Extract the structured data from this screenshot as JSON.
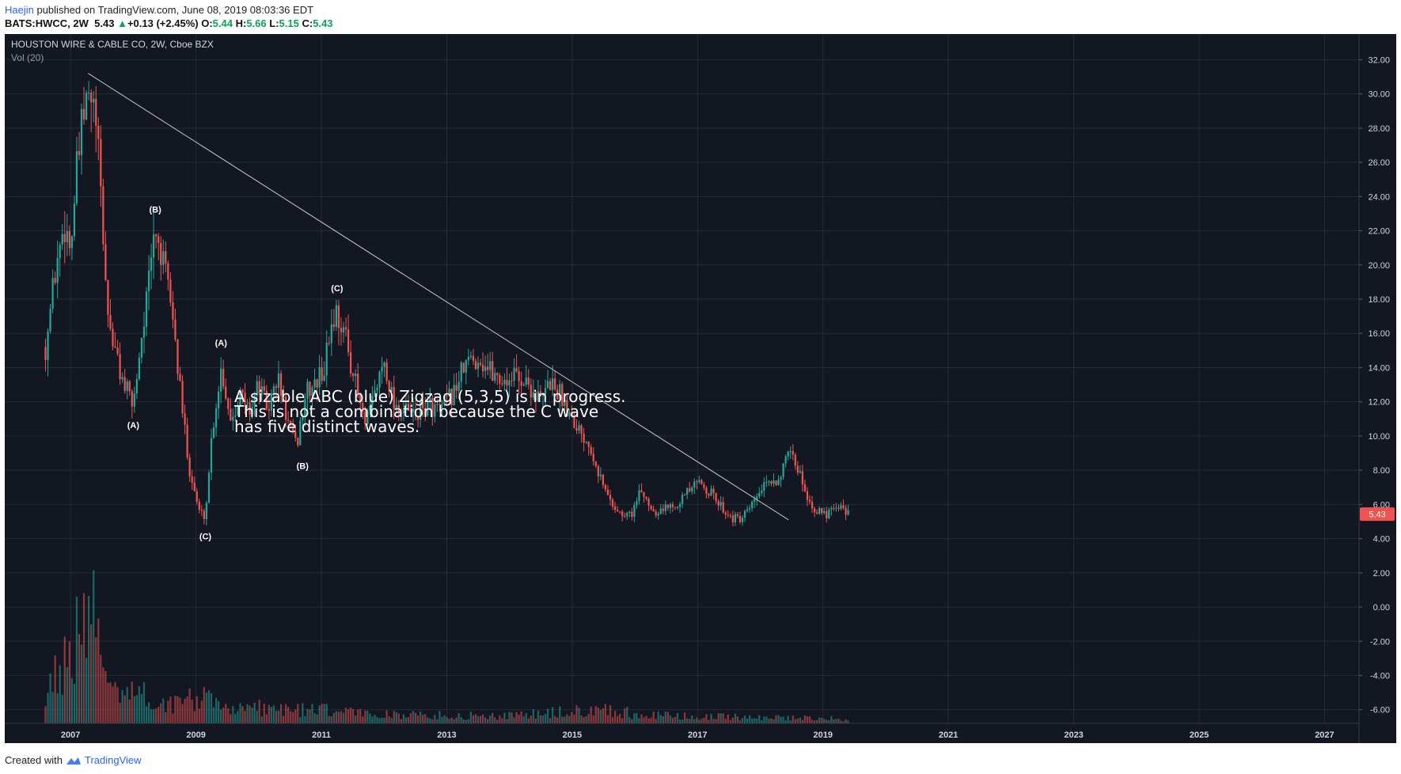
{
  "header": {
    "author": "Haejin",
    "published": " published on TradingView.com, June 08, 2019 08:03:36 EDT",
    "symbol": "BATS:HWCC, 2W",
    "last": "5.43",
    "change": "+0.13 (+2.45%)",
    "o_label": "O:",
    "o": "5.44",
    "h_label": "H:",
    "h": "5.66",
    "l_label": "L:",
    "l": "5.15",
    "c_label": "C:",
    "c": "5.43"
  },
  "footer": {
    "created": "Created with",
    "brand": "TradingView"
  },
  "chart_data": {
    "type": "candlestick",
    "title": "HOUSTON WIRE & CABLE CO, 2W, Cboe BZX",
    "indicator": "Vol (20)",
    "last_price": "5.43",
    "y_ticks": [
      32,
      30,
      28,
      26,
      24,
      22,
      20,
      18,
      16,
      14,
      12,
      10,
      8,
      6,
      4,
      2,
      0,
      -2,
      -4,
      -6
    ],
    "ylim": [
      -6.8,
      33.5
    ],
    "x_ticks": [
      "2007",
      "2009",
      "2011",
      "2013",
      "2015",
      "2017",
      "2019",
      "2021",
      "2023",
      "2025",
      "2027"
    ],
    "xlim": [
      2005.95,
      2027.55
    ],
    "annotation": "A sizable ABC (blue) Zigzag (5,3,5) is in progress.\nThis is not a combination because the C wave\nhas five distinct waves.",
    "wave_labels": [
      {
        "text": "(A)",
        "date": 2008.0,
        "price": 11.3,
        "pos": "below"
      },
      {
        "text": "(B)",
        "date": 2008.35,
        "price": 22.6,
        "pos": "above"
      },
      {
        "text": "(C)",
        "date": 2009.15,
        "price": 4.8,
        "pos": "below"
      },
      {
        "text": "(A)",
        "date": 2009.4,
        "price": 14.8,
        "pos": "above"
      },
      {
        "text": "(B)",
        "date": 2010.7,
        "price": 8.9,
        "pos": "below"
      },
      {
        "text": "(C)",
        "date": 2011.25,
        "price": 18.0,
        "pos": "above"
      }
    ],
    "trendline": {
      "from": [
        2007.28,
        31.2
      ],
      "to": [
        2018.45,
        5.1
      ]
    },
    "price_path": [
      [
        2006.6,
        15.2
      ],
      [
        2006.75,
        19.5
      ],
      [
        2006.9,
        22.5
      ],
      [
        2007.0,
        21.0
      ],
      [
        2007.1,
        25.5
      ],
      [
        2007.2,
        28.5
      ],
      [
        2007.3,
        29.8
      ],
      [
        2007.4,
        28.5
      ],
      [
        2007.5,
        23.0
      ],
      [
        2007.58,
        17.5
      ],
      [
        2007.7,
        15.0
      ],
      [
        2007.85,
        13.0
      ],
      [
        2008.0,
        11.8
      ],
      [
        2008.1,
        15.0
      ],
      [
        2008.25,
        19.0
      ],
      [
        2008.35,
        22.2
      ],
      [
        2008.5,
        19.5
      ],
      [
        2008.6,
        18.0
      ],
      [
        2008.75,
        12.5
      ],
      [
        2008.9,
        8.0
      ],
      [
        2009.05,
        5.6
      ],
      [
        2009.15,
        5.3
      ],
      [
        2009.25,
        10.0
      ],
      [
        2009.4,
        14.0
      ],
      [
        2009.55,
        11.0
      ],
      [
        2009.7,
        12.5
      ],
      [
        2009.85,
        11.5
      ],
      [
        2010.0,
        13.0
      ],
      [
        2010.15,
        11.5
      ],
      [
        2010.3,
        13.5
      ],
      [
        2010.45,
        11.0
      ],
      [
        2010.6,
        9.3
      ],
      [
        2010.75,
        12.5
      ],
      [
        2010.9,
        13.0
      ],
      [
        2011.05,
        14.0
      ],
      [
        2011.15,
        16.5
      ],
      [
        2011.25,
        17.3
      ],
      [
        2011.4,
        15.5
      ],
      [
        2011.55,
        13.0
      ],
      [
        2011.7,
        10.5
      ],
      [
        2011.85,
        12.5
      ],
      [
        2012.0,
        14.5
      ],
      [
        2012.15,
        12.0
      ],
      [
        2012.3,
        11.5
      ],
      [
        2012.5,
        11.2
      ],
      [
        2012.7,
        11.8
      ],
      [
        2012.9,
        11.5
      ],
      [
        2013.1,
        12.5
      ],
      [
        2013.3,
        14.2
      ],
      [
        2013.5,
        14.6
      ],
      [
        2013.7,
        13.8
      ],
      [
        2013.9,
        13.2
      ],
      [
        2014.1,
        13.6
      ],
      [
        2014.3,
        13.0
      ],
      [
        2014.5,
        12.0
      ],
      [
        2014.65,
        13.2
      ],
      [
        2014.8,
        12.5
      ],
      [
        2014.95,
        11.5
      ],
      [
        2015.1,
        10.5
      ],
      [
        2015.3,
        9.4
      ],
      [
        2015.5,
        7.0
      ],
      [
        2015.65,
        6.0
      ],
      [
        2015.8,
        5.3
      ],
      [
        2015.95,
        5.5
      ],
      [
        2016.1,
        6.8
      ],
      [
        2016.3,
        5.6
      ],
      [
        2016.5,
        5.8
      ],
      [
        2016.7,
        6.2
      ],
      [
        2016.9,
        6.9
      ],
      [
        2017.05,
        7.3
      ],
      [
        2017.2,
        6.7
      ],
      [
        2017.35,
        6.0
      ],
      [
        2017.55,
        5.2
      ],
      [
        2017.7,
        5.1
      ],
      [
        2017.85,
        5.8
      ],
      [
        2018.0,
        6.8
      ],
      [
        2018.15,
        7.2
      ],
      [
        2018.3,
        7.6
      ],
      [
        2018.45,
        8.8
      ],
      [
        2018.55,
        8.5
      ],
      [
        2018.65,
        7.6
      ],
      [
        2018.8,
        6.0
      ],
      [
        2018.95,
        5.5
      ],
      [
        2019.05,
        5.4
      ],
      [
        2019.15,
        6.0
      ],
      [
        2019.3,
        5.9
      ],
      [
        2019.42,
        5.43
      ]
    ],
    "volume_path": [
      [
        2006.6,
        0.18
      ],
      [
        2006.8,
        0.45
      ],
      [
        2007.0,
        0.55
      ],
      [
        2007.2,
        0.7
      ],
      [
        2007.3,
        1.0
      ],
      [
        2007.45,
        0.55
      ],
      [
        2007.6,
        0.35
      ],
      [
        2007.8,
        0.3
      ],
      [
        2008.2,
        0.2
      ],
      [
        2008.6,
        0.15
      ],
      [
        2009.0,
        0.2
      ],
      [
        2009.5,
        0.13
      ],
      [
        2010.0,
        0.12
      ],
      [
        2011.0,
        0.1
      ],
      [
        2012.0,
        0.07
      ],
      [
        2013.0,
        0.06
      ],
      [
        2014.0,
        0.06
      ],
      [
        2015.0,
        0.09
      ],
      [
        2015.5,
        0.12
      ],
      [
        2016.0,
        0.07
      ],
      [
        2017.0,
        0.05
      ],
      [
        2018.0,
        0.05
      ],
      [
        2019.0,
        0.04
      ],
      [
        2019.42,
        0.03
      ]
    ],
    "colors": {
      "up": "#26a69a",
      "down": "#ef5350",
      "background": "#131722",
      "grid": "#262b38",
      "text": "#d1d4dc",
      "trendline": "#c8c8c8",
      "price_tag": "#ef5350"
    }
  }
}
